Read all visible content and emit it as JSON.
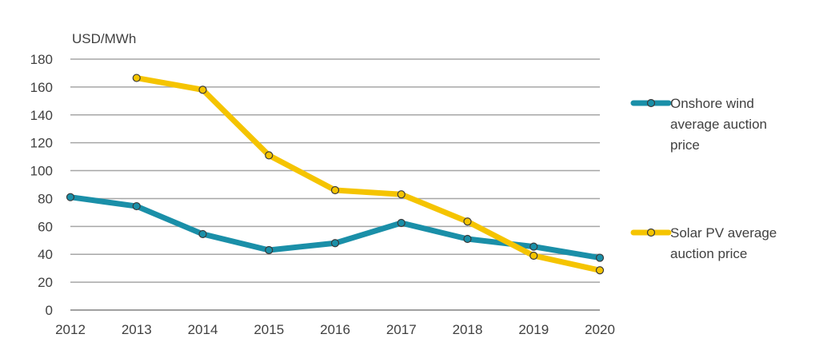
{
  "chart_data": {
    "type": "line",
    "ylabel": "USD/MWh",
    "xlabel": "",
    "title": "",
    "x": [
      "2012",
      "2013",
      "2014",
      "2015",
      "2016",
      "2017",
      "2018",
      "2019",
      "2020"
    ],
    "ylim": [
      0,
      180
    ],
    "yticks": [
      0,
      20,
      40,
      60,
      80,
      100,
      120,
      140,
      160,
      180
    ],
    "grid": true,
    "legend_position": "right",
    "series": [
      {
        "name": "Onshore wind average auction price",
        "legend_lines": [
          "Onshore wind",
          "average auction",
          "price"
        ],
        "color": "#1a8fa8",
        "values": [
          81,
          74.5,
          54.5,
          43,
          48,
          62.5,
          51,
          45.5,
          37.5
        ]
      },
      {
        "name": "Solar PV average auction price",
        "legend_lines": [
          "Solar PV average",
          "auction price"
        ],
        "color": "#f5c400",
        "values": [
          null,
          166.5,
          158,
          111,
          86,
          83,
          63.5,
          39,
          28.5
        ]
      }
    ]
  }
}
